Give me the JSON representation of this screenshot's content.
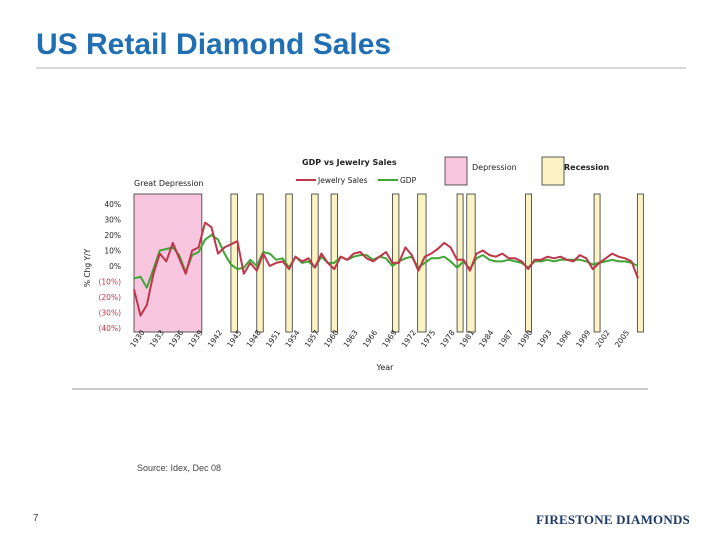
{
  "slide": {
    "title": "US Retail Diamond Sales",
    "source_note": "Source: Idex, Dec 08",
    "page_number": "7",
    "logo": "FIRESTONE DIAMONDS"
  },
  "chart_data": {
    "type": "line",
    "title": "GDP vs Jewelry Sales",
    "xlabel": "Year",
    "ylabel": "% Chg Y/Y",
    "ylim": [
      -40,
      40
    ],
    "y_ticks": [
      "40%",
      "30%",
      "20%",
      "10%",
      "0%",
      "(10%)",
      "(20%)",
      "(30%)",
      "(40%)"
    ],
    "x_ticks": [
      "1930",
      "1933",
      "1936",
      "1939",
      "1942",
      "1945",
      "1948",
      "1951",
      "1954",
      "1957",
      "1960",
      "1963",
      "1966",
      "1969",
      "1972",
      "1975",
      "1978",
      "1981",
      "1984",
      "1987",
      "1990",
      "1993",
      "1996",
      "1999",
      "2002",
      "2005"
    ],
    "legend": {
      "series": [
        {
          "name": "Jewelry Sales",
          "color": "#c0354a"
        },
        {
          "name": "GDP",
          "color": "#3fa535"
        }
      ],
      "shading": [
        {
          "name": "Depression",
          "color": "#f8c6df"
        },
        {
          "name": "Recession",
          "color": "#fbf3c4"
        }
      ]
    },
    "annotation": "Great Depression",
    "depression_period": [
      1930,
      1940.5
    ],
    "recessions": [
      [
        1945,
        1946
      ],
      [
        1949,
        1950
      ],
      [
        1953.5,
        1954.5
      ],
      [
        1957.5,
        1958.5
      ],
      [
        1960.5,
        1961.5
      ],
      [
        1970,
        1971
      ],
      [
        1973.9,
        1975.2
      ],
      [
        1980,
        1980.6
      ],
      [
        1981.5,
        1982.8
      ],
      [
        1990.6,
        1991.3
      ],
      [
        2001.2,
        2001.9
      ],
      [
        2007.9,
        2008.8
      ]
    ],
    "x": [
      1930,
      1931,
      1932,
      1933,
      1934,
      1935,
      1936,
      1937,
      1938,
      1939,
      1940,
      1941,
      1942,
      1943,
      1944,
      1945,
      1946,
      1947,
      1948,
      1949,
      1950,
      1951,
      1952,
      1953,
      1954,
      1955,
      1956,
      1957,
      1958,
      1959,
      1960,
      1961,
      1962,
      1963,
      1964,
      1965,
      1966,
      1967,
      1968,
      1969,
      1970,
      1971,
      1972,
      1973,
      1974,
      1975,
      1976,
      1977,
      1978,
      1979,
      1980,
      1981,
      1982,
      1983,
      1984,
      1985,
      1986,
      1987,
      1988,
      1989,
      1990,
      1991,
      1992,
      1993,
      1994,
      1995,
      1996,
      1997,
      1998,
      1999,
      2000,
      2001,
      2002,
      2003,
      2004,
      2005,
      2006,
      2007,
      2008
    ],
    "series": [
      {
        "name": "Jewelry Sales",
        "color": "#c0354a",
        "values": [
          -15,
          -32,
          -25,
          -5,
          8,
          3,
          15,
          5,
          -5,
          10,
          12,
          28,
          25,
          8,
          12,
          14,
          16,
          -5,
          2,
          -3,
          8,
          0,
          2,
          3,
          -2,
          6,
          3,
          5,
          -1,
          8,
          2,
          -2,
          6,
          4,
          8,
          9,
          5,
          3,
          6,
          9,
          2,
          2,
          12,
          7,
          -3,
          6,
          8,
          11,
          15,
          12,
          4,
          4,
          -3,
          8,
          10,
          7,
          6,
          8,
          5,
          5,
          3,
          -2,
          4,
          4,
          6,
          5,
          6,
          4,
          3,
          7,
          5,
          -2,
          2,
          5,
          8,
          6,
          5,
          3,
          -8
        ]
      },
      {
        "name": "GDP",
        "color": "#3fa535",
        "values": [
          -8,
          -7,
          -14,
          -2,
          10,
          11,
          12,
          7,
          -4,
          7,
          9,
          17,
          20,
          17,
          8,
          1,
          -2,
          -1,
          4,
          0,
          9,
          8,
          4,
          5,
          -1,
          6,
          2,
          3,
          -1,
          6,
          2,
          2,
          6,
          4,
          6,
          7,
          7,
          4,
          6,
          5,
          0,
          3,
          5,
          6,
          -1,
          2,
          5,
          5,
          6,
          3,
          -1,
          3,
          -2,
          5,
          7,
          4,
          3,
          3,
          4,
          3,
          2,
          -1,
          3,
          3,
          4,
          3,
          4,
          4,
          4,
          4,
          3,
          1,
          2,
          3,
          4,
          3,
          3,
          2,
          0
        ]
      }
    ]
  }
}
